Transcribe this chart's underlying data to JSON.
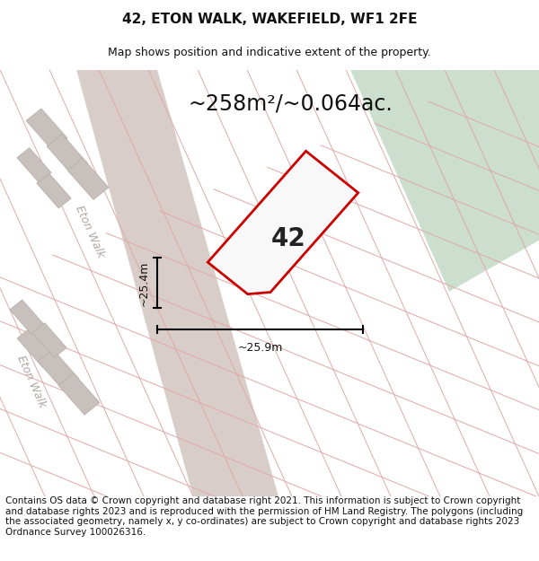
{
  "title": "42, ETON WALK, WAKEFIELD, WF1 2FE",
  "subtitle": "Map shows position and indicative extent of the property.",
  "area_text": "~258m²/~0.064ac.",
  "label_42": "42",
  "dim_width": "~25.9m",
  "dim_height": "~25.4m",
  "road_label": "Eton Walk",
  "footer": "Contains OS data © Crown copyright and database right 2021. This information is subject to Crown copyright and database rights 2023 and is reproduced with the permission of HM Land Registry. The polygons (including the associated geometry, namely x, y co-ordinates) are subject to Crown copyright and database rights 2023 Ordnance Survey 100026316.",
  "map_bg": "#ede8e3",
  "green_color": "#ccdece",
  "road_fill": "#d8cdc8",
  "pink_line": "#e0a8a8",
  "red_outline": "#cc0000",
  "grey_block": "#c8c0bc",
  "grey_block_edge": "#b8b0ac",
  "white_plot": "#f8f8f8",
  "title_fontsize": 11,
  "subtitle_fontsize": 9,
  "area_fontsize": 17,
  "footer_fontsize": 7.5,
  "road_label_color": "#b0a8a4",
  "dim_label_fontsize": 9
}
